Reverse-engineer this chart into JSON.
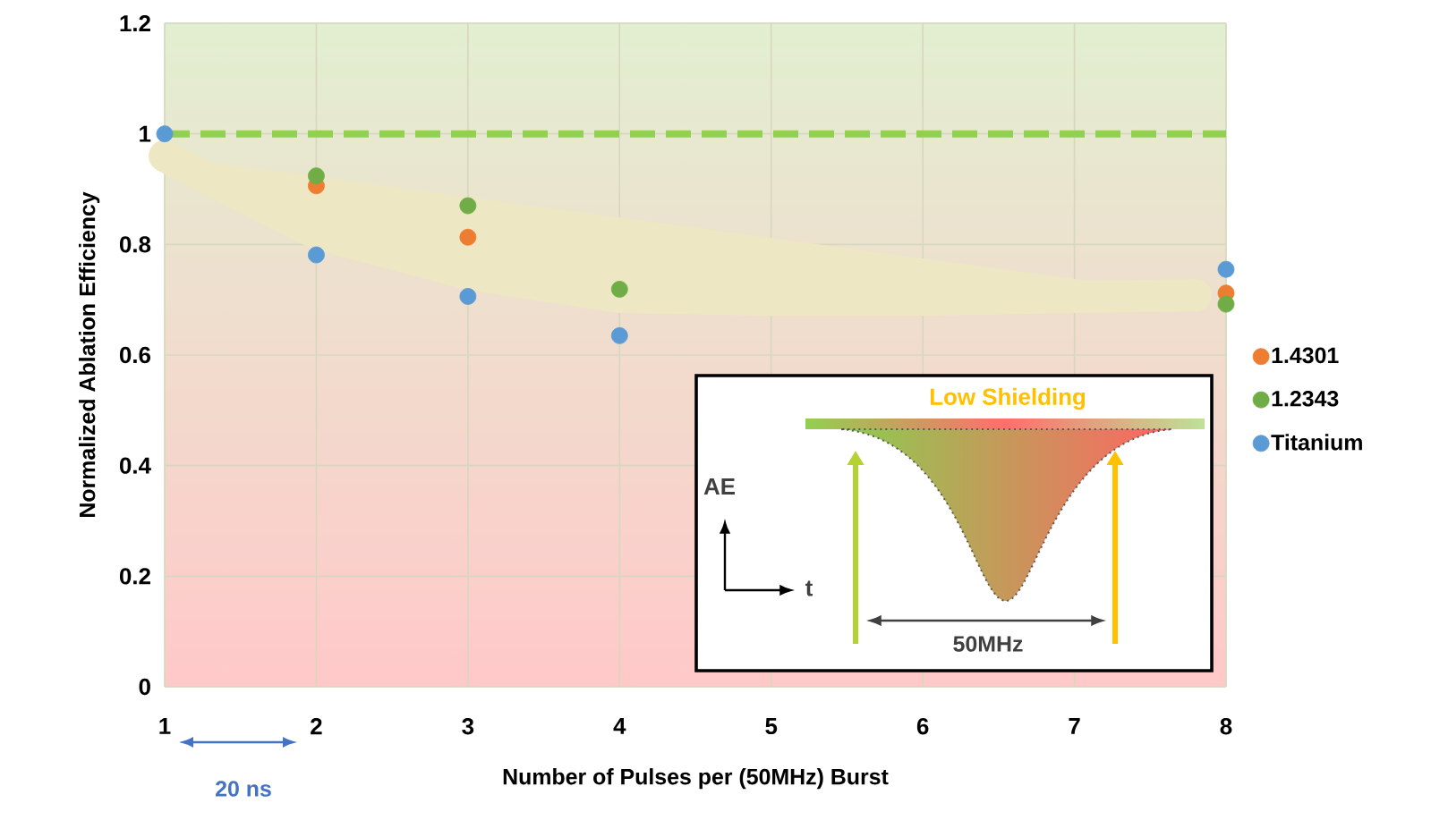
{
  "chart_data": {
    "type": "scatter",
    "xlabel": "Number of Pulses per (50MHz) Burst",
    "ylabel": "Normalized Ablation Efficiency",
    "x": [
      1,
      2,
      3,
      4,
      8
    ],
    "series": [
      {
        "type": "line",
        "marker": "none",
        "color": "#ede7c3",
        "x": [
          1,
          2,
          3,
          4,
          5,
          6,
          7,
          7.8
        ],
        "values": [
          0.96,
          0.82,
          0.747,
          0.705,
          0.7,
          0.7,
          0.705,
          0.708
        ]
      },
      {
        "name": "1.4301",
        "marker": "circle",
        "color": "#ed7d31",
        "values": [
          null,
          0.906,
          0.813,
          null,
          0.712
        ]
      },
      {
        "name": "1.2343",
        "marker": "circle",
        "color": "#70ad47",
        "values": [
          null,
          0.924,
          0.87,
          0.719,
          0.692
        ]
      },
      {
        "name": "Titanium",
        "marker": "circle",
        "color": "#5b9bd5",
        "values": [
          1,
          0.781,
          0.706,
          0.635,
          0.755
        ]
      }
    ],
    "xlim": [
      1,
      8
    ],
    "xticks": [
      1,
      2,
      3,
      4,
      5,
      6,
      7,
      8
    ],
    "ylim": [
      0,
      1.2
    ],
    "yticks": [
      0,
      0.2,
      0.4,
      0.6,
      0.8,
      1,
      1.2
    ],
    "grid": true,
    "legend": "right",
    "ref_lines": [
      {
        "axis": "y",
        "value": 1,
        "color": "#92d050",
        "line_style": "dashed"
      }
    ],
    "annotations": [
      "20 ns",
      "Low Shielding",
      "AE",
      "t",
      "50MHz"
    ]
  }
}
